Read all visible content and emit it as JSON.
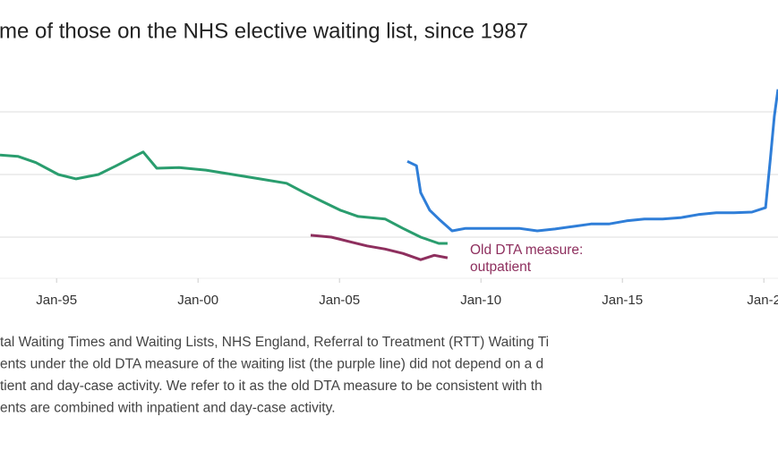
{
  "chart_data": {
    "type": "line",
    "title": "me of those on the NHS elective waiting list, since 1987",
    "xlim": [
      1993,
      2020.5
    ],
    "ylim": [
      0.4,
      3.4
    ],
    "xticks": [
      {
        "value": 1995,
        "label": "Jan-95"
      },
      {
        "value": 2000,
        "label": "Jan-00"
      },
      {
        "value": 2005,
        "label": "Jan-05"
      },
      {
        "value": 2010,
        "label": "Jan-10"
      },
      {
        "value": 2015,
        "label": "Jan-15"
      },
      {
        "value": 2020,
        "label": "Jan-2"
      }
    ],
    "y_gridlines": [
      1,
      2,
      3
    ],
    "grid": true,
    "series": [
      {
        "color": "#2a9d6e",
        "x": [
          1993.0,
          1993.63,
          1994.27,
          1995.06,
          1995.69,
          1996.48,
          1997.11,
          1997.75,
          1998.06,
          1998.54,
          1999.33,
          2000.28,
          2001.23,
          2002.18,
          2003.13,
          2003.76,
          2004.39,
          2005.03,
          2005.66,
          2006.61,
          2007.24,
          2007.87,
          2008.51,
          2008.82
        ],
        "values": [
          2.31,
          2.29,
          2.19,
          2.0,
          1.93,
          2.0,
          2.14,
          2.29,
          2.36,
          2.1,
          2.11,
          2.07,
          2.0,
          1.93,
          1.86,
          1.71,
          1.57,
          1.43,
          1.33,
          1.29,
          1.14,
          1.0,
          0.9,
          0.9
        ]
      },
      {
        "color": "#8e2f5e",
        "x": [
          2003.98,
          2004.71,
          2005.34,
          2005.97,
          2006.61,
          2007.24,
          2007.87,
          2008.35,
          2008.82
        ],
        "values": [
          1.03,
          1.0,
          0.93,
          0.86,
          0.81,
          0.74,
          0.64,
          0.71,
          0.67
        ]
      },
      {
        "color": "#2f7ed8",
        "x": [
          2007.4,
          2007.72,
          2007.87,
          2008.19,
          2008.51,
          2008.98,
          2009.46,
          2010.09,
          2010.72,
          2011.35,
          2011.99,
          2012.62,
          2013.25,
          2013.89,
          2014.52,
          2015.15,
          2015.78,
          2016.42,
          2017.05,
          2017.68,
          2018.32,
          2018.95,
          2019.58,
          2020.06,
          2020.22,
          2020.37,
          2020.5
        ],
        "values": [
          2.21,
          2.14,
          1.71,
          1.43,
          1.29,
          1.1,
          1.14,
          1.14,
          1.14,
          1.14,
          1.1,
          1.13,
          1.17,
          1.21,
          1.21,
          1.26,
          1.29,
          1.29,
          1.31,
          1.36,
          1.39,
          1.39,
          1.4,
          1.47,
          2.21,
          2.93,
          3.36
        ]
      }
    ],
    "annotation": {
      "lines": [
        "Old DTA measure:",
        "outpatient"
      ],
      "color": "#8e2f5e"
    },
    "notes": [
      "tal Waiting Times and Waiting Lists, NHS England, Referral to Treatment (RTT) Waiting Ti",
      "ents under the old DTA measure of the waiting list (the purple line) did not depend on a d",
      "tient and day-case activity. We refer to it as the old DTA measure to be consistent with th",
      "ents are combined with inpatient and day-case activity."
    ]
  }
}
